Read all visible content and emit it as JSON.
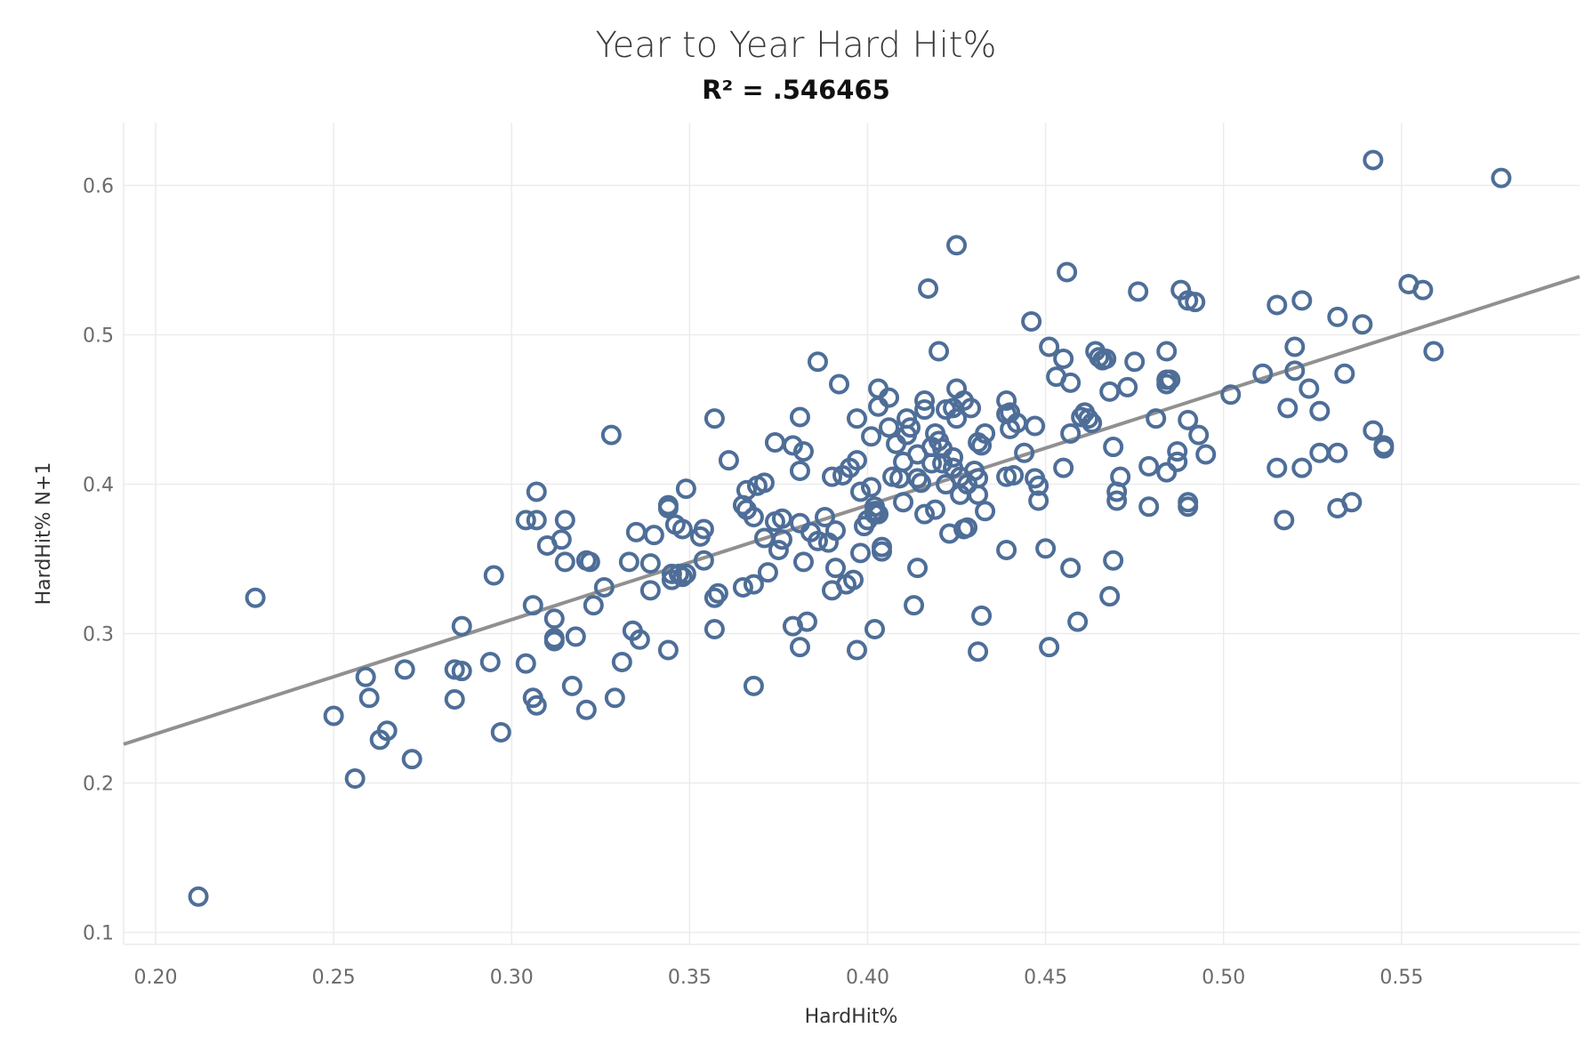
{
  "chart_data": {
    "type": "scatter",
    "title": "Year to Year Hard Hit%",
    "subtitle": "R² = .546465",
    "xlabel": "HardHit%",
    "ylabel": "HardHit% N+1",
    "xlim": [
      0.191,
      0.6
    ],
    "ylim": [
      0.092,
      0.642
    ],
    "x_ticks": [
      "0.20",
      "0.25",
      "0.30",
      "0.35",
      "0.40",
      "0.45",
      "0.50",
      "0.55"
    ],
    "y_ticks": [
      "0.1",
      "0.2",
      "0.3",
      "0.4",
      "0.5",
      "0.6"
    ],
    "grid": true,
    "legend": "none",
    "point_color": "#4e6e98",
    "trend_color": "#909090",
    "trendline": {
      "x": [
        0.191,
        0.6
      ],
      "y": [
        0.226,
        0.539
      ]
    },
    "points": [
      [
        0.212,
        0.124
      ],
      [
        0.228,
        0.324
      ],
      [
        0.25,
        0.245
      ],
      [
        0.256,
        0.203
      ],
      [
        0.259,
        0.271
      ],
      [
        0.26,
        0.257
      ],
      [
        0.263,
        0.229
      ],
      [
        0.265,
        0.235
      ],
      [
        0.27,
        0.276
      ],
      [
        0.272,
        0.216
      ],
      [
        0.284,
        0.276
      ],
      [
        0.284,
        0.256
      ],
      [
        0.286,
        0.275
      ],
      [
        0.286,
        0.305
      ],
      [
        0.294,
        0.281
      ],
      [
        0.295,
        0.339
      ],
      [
        0.297,
        0.234
      ],
      [
        0.304,
        0.28
      ],
      [
        0.304,
        0.376
      ],
      [
        0.306,
        0.319
      ],
      [
        0.306,
        0.257
      ],
      [
        0.307,
        0.376
      ],
      [
        0.307,
        0.252
      ],
      [
        0.307,
        0.395
      ],
      [
        0.31,
        0.359
      ],
      [
        0.312,
        0.31
      ],
      [
        0.312,
        0.295
      ],
      [
        0.312,
        0.297
      ],
      [
        0.314,
        0.363
      ],
      [
        0.315,
        0.376
      ],
      [
        0.315,
        0.348
      ],
      [
        0.317,
        0.265
      ],
      [
        0.318,
        0.298
      ],
      [
        0.321,
        0.249
      ],
      [
        0.321,
        0.349
      ],
      [
        0.322,
        0.348
      ],
      [
        0.323,
        0.319
      ],
      [
        0.326,
        0.331
      ],
      [
        0.328,
        0.433
      ],
      [
        0.329,
        0.257
      ],
      [
        0.331,
        0.281
      ],
      [
        0.333,
        0.348
      ],
      [
        0.334,
        0.302
      ],
      [
        0.335,
        0.368
      ],
      [
        0.336,
        0.296
      ],
      [
        0.339,
        0.347
      ],
      [
        0.339,
        0.329
      ],
      [
        0.34,
        0.366
      ],
      [
        0.344,
        0.289
      ],
      [
        0.344,
        0.386
      ],
      [
        0.344,
        0.384
      ],
      [
        0.345,
        0.34
      ],
      [
        0.345,
        0.336
      ],
      [
        0.346,
        0.373
      ],
      [
        0.347,
        0.34
      ],
      [
        0.348,
        0.37
      ],
      [
        0.348,
        0.338
      ],
      [
        0.349,
        0.397
      ],
      [
        0.349,
        0.34
      ],
      [
        0.353,
        0.365
      ],
      [
        0.354,
        0.37
      ],
      [
        0.354,
        0.349
      ],
      [
        0.357,
        0.444
      ],
      [
        0.357,
        0.303
      ],
      [
        0.357,
        0.324
      ],
      [
        0.358,
        0.327
      ],
      [
        0.361,
        0.416
      ],
      [
        0.365,
        0.331
      ],
      [
        0.365,
        0.386
      ],
      [
        0.366,
        0.383
      ],
      [
        0.366,
        0.396
      ],
      [
        0.368,
        0.265
      ],
      [
        0.368,
        0.333
      ],
      [
        0.368,
        0.378
      ],
      [
        0.369,
        0.399
      ],
      [
        0.371,
        0.401
      ],
      [
        0.371,
        0.364
      ],
      [
        0.372,
        0.341
      ],
      [
        0.374,
        0.375
      ],
      [
        0.374,
        0.428
      ],
      [
        0.375,
        0.356
      ],
      [
        0.376,
        0.377
      ],
      [
        0.376,
        0.363
      ],
      [
        0.379,
        0.305
      ],
      [
        0.379,
        0.426
      ],
      [
        0.381,
        0.291
      ],
      [
        0.381,
        0.374
      ],
      [
        0.381,
        0.409
      ],
      [
        0.381,
        0.445
      ],
      [
        0.382,
        0.422
      ],
      [
        0.382,
        0.348
      ],
      [
        0.383,
        0.308
      ],
      [
        0.384,
        0.368
      ],
      [
        0.386,
        0.482
      ],
      [
        0.386,
        0.362
      ],
      [
        0.388,
        0.378
      ],
      [
        0.389,
        0.361
      ],
      [
        0.39,
        0.329
      ],
      [
        0.39,
        0.405
      ],
      [
        0.391,
        0.344
      ],
      [
        0.391,
        0.369
      ],
      [
        0.392,
        0.467
      ],
      [
        0.393,
        0.406
      ],
      [
        0.394,
        0.333
      ],
      [
        0.395,
        0.411
      ],
      [
        0.396,
        0.336
      ],
      [
        0.397,
        0.289
      ],
      [
        0.397,
        0.444
      ],
      [
        0.397,
        0.416
      ],
      [
        0.398,
        0.354
      ],
      [
        0.398,
        0.395
      ],
      [
        0.399,
        0.372
      ],
      [
        0.4,
        0.376
      ],
      [
        0.401,
        0.432
      ],
      [
        0.401,
        0.398
      ],
      [
        0.402,
        0.303
      ],
      [
        0.402,
        0.385
      ],
      [
        0.402,
        0.38
      ],
      [
        0.402,
        0.382
      ],
      [
        0.403,
        0.464
      ],
      [
        0.403,
        0.452
      ],
      [
        0.403,
        0.38
      ],
      [
        0.404,
        0.358
      ],
      [
        0.404,
        0.355
      ],
      [
        0.406,
        0.438
      ],
      [
        0.406,
        0.458
      ],
      [
        0.407,
        0.405
      ],
      [
        0.408,
        0.427
      ],
      [
        0.409,
        0.404
      ],
      [
        0.41,
        0.415
      ],
      [
        0.41,
        0.388
      ],
      [
        0.411,
        0.444
      ],
      [
        0.411,
        0.433
      ],
      [
        0.412,
        0.438
      ],
      [
        0.413,
        0.319
      ],
      [
        0.414,
        0.344
      ],
      [
        0.414,
        0.42
      ],
      [
        0.414,
        0.404
      ],
      [
        0.415,
        0.401
      ],
      [
        0.416,
        0.38
      ],
      [
        0.416,
        0.45
      ],
      [
        0.416,
        0.456
      ],
      [
        0.417,
        0.531
      ],
      [
        0.418,
        0.425
      ],
      [
        0.418,
        0.414
      ],
      [
        0.419,
        0.383
      ],
      [
        0.419,
        0.434
      ],
      [
        0.42,
        0.429
      ],
      [
        0.42,
        0.489
      ],
      [
        0.421,
        0.414
      ],
      [
        0.421,
        0.424
      ],
      [
        0.422,
        0.4
      ],
      [
        0.422,
        0.45
      ],
      [
        0.423,
        0.367
      ],
      [
        0.424,
        0.411
      ],
      [
        0.424,
        0.418
      ],
      [
        0.424,
        0.451
      ],
      [
        0.425,
        0.56
      ],
      [
        0.425,
        0.444
      ],
      [
        0.425,
        0.464
      ],
      [
        0.426,
        0.405
      ],
      [
        0.426,
        0.393
      ],
      [
        0.427,
        0.456
      ],
      [
        0.427,
        0.37
      ],
      [
        0.428,
        0.4
      ],
      [
        0.428,
        0.371
      ],
      [
        0.429,
        0.451
      ],
      [
        0.43,
        0.409
      ],
      [
        0.431,
        0.428
      ],
      [
        0.431,
        0.404
      ],
      [
        0.431,
        0.393
      ],
      [
        0.431,
        0.288
      ],
      [
        0.432,
        0.312
      ],
      [
        0.432,
        0.426
      ],
      [
        0.433,
        0.382
      ],
      [
        0.433,
        0.434
      ],
      [
        0.439,
        0.356
      ],
      [
        0.439,
        0.405
      ],
      [
        0.439,
        0.456
      ],
      [
        0.439,
        0.447
      ],
      [
        0.44,
        0.448
      ],
      [
        0.44,
        0.437
      ],
      [
        0.441,
        0.406
      ],
      [
        0.442,
        0.441
      ],
      [
        0.444,
        0.421
      ],
      [
        0.446,
        0.509
      ],
      [
        0.447,
        0.439
      ],
      [
        0.447,
        0.404
      ],
      [
        0.448,
        0.399
      ],
      [
        0.448,
        0.389
      ],
      [
        0.45,
        0.357
      ],
      [
        0.451,
        0.291
      ],
      [
        0.451,
        0.492
      ],
      [
        0.453,
        0.472
      ],
      [
        0.455,
        0.484
      ],
      [
        0.455,
        0.411
      ],
      [
        0.456,
        0.542
      ],
      [
        0.457,
        0.344
      ],
      [
        0.457,
        0.468
      ],
      [
        0.457,
        0.434
      ],
      [
        0.459,
        0.308
      ],
      [
        0.46,
        0.445
      ],
      [
        0.461,
        0.448
      ],
      [
        0.462,
        0.444
      ],
      [
        0.463,
        0.441
      ],
      [
        0.464,
        0.489
      ],
      [
        0.465,
        0.485
      ],
      [
        0.466,
        0.483
      ],
      [
        0.467,
        0.484
      ],
      [
        0.468,
        0.462
      ],
      [
        0.468,
        0.325
      ],
      [
        0.469,
        0.425
      ],
      [
        0.469,
        0.349
      ],
      [
        0.47,
        0.395
      ],
      [
        0.47,
        0.389
      ],
      [
        0.471,
        0.405
      ],
      [
        0.473,
        0.465
      ],
      [
        0.475,
        0.482
      ],
      [
        0.476,
        0.529
      ],
      [
        0.479,
        0.385
      ],
      [
        0.479,
        0.412
      ],
      [
        0.481,
        0.444
      ],
      [
        0.484,
        0.489
      ],
      [
        0.484,
        0.47
      ],
      [
        0.484,
        0.467
      ],
      [
        0.484,
        0.408
      ],
      [
        0.485,
        0.47
      ],
      [
        0.487,
        0.415
      ],
      [
        0.487,
        0.422
      ],
      [
        0.488,
        0.53
      ],
      [
        0.49,
        0.523
      ],
      [
        0.49,
        0.443
      ],
      [
        0.49,
        0.385
      ],
      [
        0.49,
        0.388
      ],
      [
        0.492,
        0.522
      ],
      [
        0.493,
        0.433
      ],
      [
        0.495,
        0.42
      ],
      [
        0.502,
        0.46
      ],
      [
        0.511,
        0.474
      ],
      [
        0.515,
        0.52
      ],
      [
        0.515,
        0.411
      ],
      [
        0.517,
        0.376
      ],
      [
        0.518,
        0.451
      ],
      [
        0.52,
        0.476
      ],
      [
        0.52,
        0.492
      ],
      [
        0.522,
        0.523
      ],
      [
        0.522,
        0.411
      ],
      [
        0.524,
        0.464
      ],
      [
        0.527,
        0.449
      ],
      [
        0.527,
        0.421
      ],
      [
        0.532,
        0.512
      ],
      [
        0.532,
        0.384
      ],
      [
        0.532,
        0.421
      ],
      [
        0.534,
        0.474
      ],
      [
        0.536,
        0.388
      ],
      [
        0.539,
        0.507
      ],
      [
        0.542,
        0.617
      ],
      [
        0.542,
        0.436
      ],
      [
        0.545,
        0.424
      ],
      [
        0.545,
        0.426
      ],
      [
        0.552,
        0.534
      ],
      [
        0.556,
        0.53
      ],
      [
        0.559,
        0.489
      ],
      [
        0.578,
        0.605
      ]
    ]
  }
}
